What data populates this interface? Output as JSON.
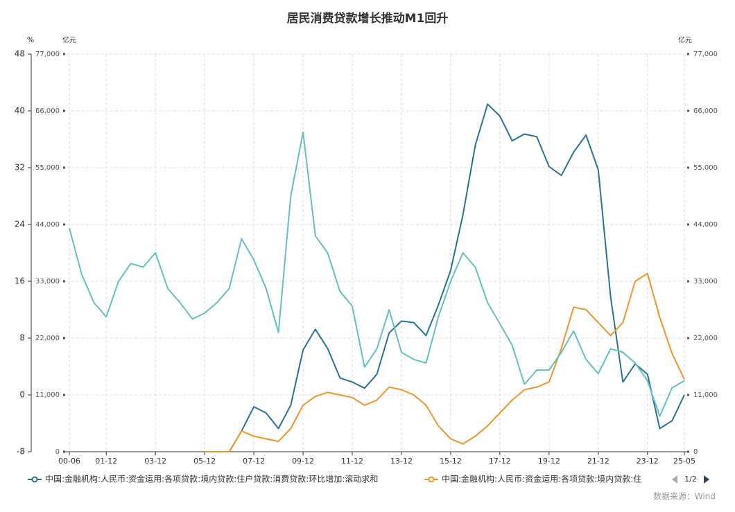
{
  "chart_data": {
    "type": "line",
    "title": "居民消费贷款增长推动M1回升",
    "ylabel": "%",
    "y2label": "亿元",
    "source": "数据来源：Wind",
    "legend_page": "1/2",
    "categories": [
      "00-06",
      null,
      null,
      "01-12",
      null,
      null,
      null,
      "03-12",
      null,
      null,
      null,
      "05-12",
      null,
      null,
      null,
      "07-12",
      null,
      null,
      null,
      "09-12",
      null,
      null,
      null,
      "11-12",
      null,
      null,
      null,
      "13-12",
      null,
      null,
      null,
      "15-12",
      null,
      null,
      null,
      "17-12",
      null,
      null,
      null,
      "19-12",
      null,
      null,
      null,
      "21-12",
      null,
      null,
      null,
      "23-12",
      null,
      null,
      "25-05"
    ],
    "ylim": [
      -8,
      48
    ],
    "yticks": [
      -8,
      0,
      8,
      16,
      24,
      32,
      40,
      48
    ],
    "y2lim": [
      0,
      77000
    ],
    "y2ticks": [
      0,
      {
        "value": 11000,
        "label": "11,000"
      },
      {
        "value": 22000,
        "label": "22,000"
      },
      {
        "value": 33000,
        "label": "33,000"
      },
      {
        "value": 44000,
        "label": "44,000"
      },
      {
        "value": 55000,
        "label": "55,000"
      },
      {
        "value": 66000,
        "label": "66,000"
      },
      {
        "value": 77000,
        "label": "77,000"
      }
    ],
    "grid": true,
    "series": [
      {
        "name": "中国:金融机构:人民币:资金运用:各项贷款:境内贷款:住户贷款:消费贷款:环比增加:滚动求和",
        "color": "#27738f",
        "axis": "y2",
        "values": [
          null,
          null,
          null,
          null,
          null,
          null,
          null,
          null,
          null,
          null,
          null,
          0,
          0,
          0,
          4000,
          8700,
          7500,
          4500,
          9000,
          19700,
          23700,
          20000,
          14300,
          13500,
          12300,
          15000,
          23000,
          25300,
          25000,
          22500,
          28400,
          35100,
          45900,
          59300,
          67300,
          65000,
          60200,
          61500,
          61000,
          55200,
          53500,
          58000,
          61300,
          54600,
          30000,
          13500,
          17000,
          15000,
          4500,
          6000,
          11000
        ]
      },
      {
        "name": "中国:金融机构:人民币:资金运用:各项贷款:境内贷款:住",
        "color": "#ef9427",
        "axis": "y2",
        "values": [
          null,
          null,
          null,
          null,
          null,
          null,
          null,
          null,
          null,
          null,
          null,
          0,
          0,
          0,
          4000,
          3000,
          2500,
          2000,
          4500,
          9000,
          10700,
          11500,
          11000,
          10500,
          9000,
          10000,
          12500,
          12000,
          11000,
          9000,
          5000,
          2500,
          1500,
          3000,
          5000,
          7500,
          10000,
          12000,
          12500,
          13500,
          20000,
          28000,
          27500,
          25000,
          22500,
          25000,
          33000,
          34500,
          26000,
          19000,
          14000
        ]
      },
      {
        "color": "#62c0c1",
        "axis": "y",
        "values": [
          23.5,
          17,
          13,
          11,
          16,
          18.5,
          18,
          20,
          15,
          13,
          10.7,
          11.5,
          13,
          15,
          22,
          19,
          15,
          8.8,
          28,
          37,
          22.4,
          20,
          14.6,
          12.5,
          3.9,
          6.5,
          12,
          6,
          5,
          4.5,
          11,
          16,
          20,
          18,
          13,
          10,
          7,
          1.5,
          3.5,
          3.5,
          6,
          9,
          5,
          3,
          6.5,
          6,
          4.5,
          2,
          -3,
          1,
          2
        ]
      }
    ]
  }
}
